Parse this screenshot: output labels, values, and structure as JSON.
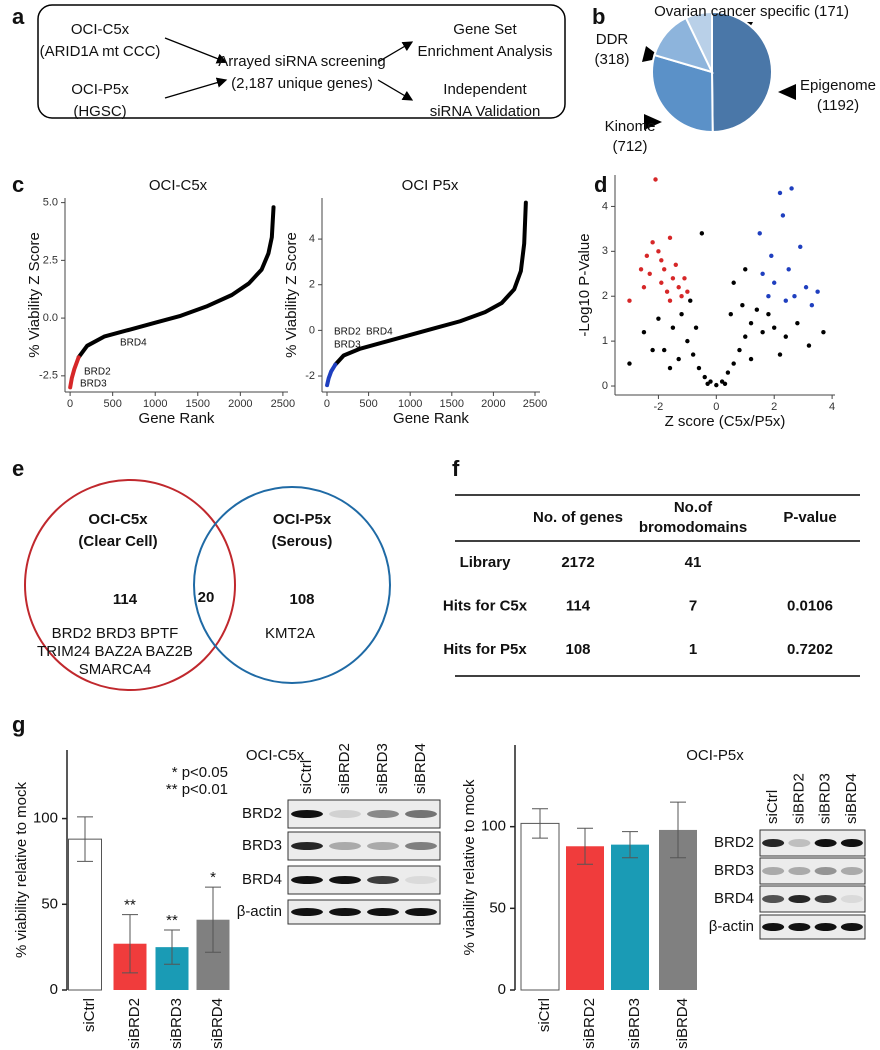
{
  "panels": [
    "a",
    "b",
    "c",
    "d",
    "e",
    "f",
    "g"
  ],
  "diagram": {
    "left": [
      [
        "OCI-C5x",
        "(ARID1A mt CCC)"
      ],
      [
        "OCI-P5x",
        "(HGSC)"
      ]
    ],
    "center": [
      "Arrayed siRNA screening",
      "(2,187 unique genes)"
    ],
    "right": [
      [
        "Gene Set",
        "Enrichment Analysis"
      ],
      [
        "Independent",
        "siRNA Validation"
      ]
    ]
  },
  "venn": {
    "left": {
      "title": [
        "OCI-C5x",
        "(Clear Cell)"
      ],
      "count": 114,
      "genes": [
        "BRD2 BRD3 BPTF",
        "TRIM24 BAZ2A BAZ2B",
        "SMARCA4"
      ]
    },
    "overlap": 20,
    "right": {
      "title": [
        "OCI-P5x",
        "(Serous)"
      ],
      "count": 108,
      "genes": [
        "KMT2A"
      ]
    }
  },
  "table": {
    "header": [
      [
        "No. of genes"
      ],
      [
        "No.of",
        "bromodomains"
      ],
      [
        "P-value"
      ]
    ],
    "rows": [
      [
        "Library",
        2172,
        41
      ],
      [
        "Hits for C5x",
        114,
        7,
        0.0106
      ],
      [
        "Hits for P5x",
        108,
        1,
        0.7202
      ]
    ]
  },
  "blots": [
    {
      "lanes": [
        "siCtrl",
        "siBRD2",
        "siBRD3",
        "siBRD4"
      ],
      "rows": [
        "BRD2",
        "BRD3",
        "BRD4",
        "β-actin"
      ]
    },
    {
      "lanes": [
        "siCtrl",
        "siBRD2",
        "siBRD3",
        "siBRD4"
      ],
      "rows": [
        "BRD2",
        "BRD3",
        "BRD4",
        "β-actin"
      ]
    }
  ],
  "chart_data": [
    {
      "type": "pie",
      "categories": [
        "Epigenome",
        "Kinome",
        "DDR",
        "Ovarian cancer specific"
      ],
      "values": [
        1192,
        712,
        318,
        171
      ],
      "value_labels": [
        "(1192)",
        "(712)",
        "(318)",
        "(171)"
      ],
      "colors": [
        "#4a77a8",
        "#5b91c8",
        "#8db4dc",
        "#b9d0e8"
      ]
    },
    {
      "type": "line",
      "title": "OCI-C5x",
      "x_label": "Gene Rank",
      "y_label": "% Viability Z Score",
      "xlim": [
        -60,
        2560
      ],
      "ylim": [
        -3.2,
        5.2
      ],
      "xticks": [
        0,
        500,
        1000,
        1500,
        2000,
        2500
      ],
      "yticks": [
        {
          "value": -2.5,
          "label": "-2.5"
        },
        {
          "value": 0,
          "label": "0.0"
        },
        {
          "value": 2.5,
          "label": "2.5"
        },
        {
          "value": 5,
          "label": "5.0"
        }
      ],
      "annotations": [
        "BRD4",
        "BRD2",
        "BRD3"
      ],
      "series": [
        {
          "color": "#000000",
          "x": [
            100,
            200,
            400,
            700,
            1000,
            1300,
            1600,
            1900,
            2100,
            2250,
            2330,
            2370,
            2390
          ],
          "values": [
            -1.7,
            -1.2,
            -0.8,
            -0.5,
            -0.2,
            0.1,
            0.5,
            1.0,
            1.5,
            2.1,
            2.8,
            3.5,
            4.8
          ]
        },
        {
          "color": "#d62728",
          "x": [
            1,
            20,
            50,
            100
          ],
          "values": [
            -3.0,
            -2.6,
            -2.2,
            -1.7
          ]
        }
      ]
    },
    {
      "type": "line",
      "title": "OCI P5x",
      "x_label": "Gene Rank",
      "y_label": "% Viability Z Score",
      "xlim": [
        -60,
        2560
      ],
      "ylim": [
        -2.7,
        5.8
      ],
      "xticks": [
        0,
        500,
        1000,
        1500,
        2000,
        2500
      ],
      "yticks": [
        -2,
        0,
        2,
        4
      ],
      "annotations": [
        "BRD2",
        "BRD4",
        "BRD3"
      ],
      "series": [
        {
          "color": "#000000",
          "x": [
            100,
            200,
            400,
            700,
            1000,
            1300,
            1600,
            1900,
            2100,
            2250,
            2330,
            2370,
            2390
          ],
          "values": [
            -1.5,
            -1.1,
            -0.8,
            -0.5,
            -0.2,
            0.1,
            0.4,
            0.8,
            1.2,
            1.8,
            2.6,
            3.8,
            5.6
          ]
        },
        {
          "color": "#1f3fbf",
          "x": [
            1,
            20,
            50,
            100
          ],
          "values": [
            -2.4,
            -2.1,
            -1.8,
            -1.5
          ]
        }
      ]
    },
    {
      "type": "scatter",
      "x_label": "Z score (C5x/P5x)",
      "y_label": "-Log10 P-Value",
      "xlim": [
        -3.5,
        4.1
      ],
      "ylim": [
        -0.2,
        4.7
      ],
      "xticks": [
        -2,
        0,
        2,
        4
      ],
      "yticks": [
        0,
        1,
        2,
        3,
        4
      ],
      "series": [
        {
          "color": "#000000",
          "x": [
            -2.5,
            -2.0,
            -1.8,
            -1.5,
            -1.2,
            -1.0,
            -0.8,
            -0.6,
            -0.4,
            -0.2,
            0,
            0.2,
            0.4,
            0.6,
            0.8,
            1.0,
            1.2,
            1.4,
            1.6,
            1.8,
            2.0,
            2.4,
            2.8,
            3.2,
            3.7,
            -0.9,
            -1.3,
            -2.2,
            -0.5,
            0.6,
            1.0,
            -3.0,
            -0.3,
            0.3,
            -0.7,
            0.9,
            1.2,
            -1.6,
            2.2,
            0.5
          ],
          "values": [
            1.2,
            1.5,
            0.8,
            1.3,
            1.6,
            1.0,
            0.7,
            0.4,
            0.2,
            0.1,
            0.02,
            0.1,
            0.3,
            0.5,
            0.8,
            1.1,
            1.4,
            1.7,
            1.2,
            1.6,
            1.3,
            1.1,
            1.4,
            0.9,
            1.2,
            1.9,
            0.6,
            0.8,
            3.4,
            2.3,
            2.6,
            0.5,
            0.05,
            0.05,
            1.3,
            1.8,
            0.6,
            0.4,
            0.7,
            1.6
          ]
        },
        {
          "color": "#d62728",
          "x": [
            -3.0,
            -2.5,
            -2.3,
            -2.1,
            -2.0,
            -1.9,
            -2.2,
            -1.8,
            -1.6,
            -1.5,
            -1.7,
            -1.4,
            -1.3,
            -1.2,
            -1.1,
            -1.0,
            -2.4,
            -1.6,
            -1.9,
            -2.6
          ],
          "values": [
            1.9,
            2.2,
            2.5,
            4.6,
            3.0,
            2.8,
            3.2,
            2.6,
            3.3,
            2.4,
            2.1,
            2.7,
            2.2,
            2.0,
            2.4,
            2.1,
            2.9,
            1.9,
            2.3,
            2.6
          ]
        },
        {
          "color": "#1f3fbf",
          "x": [
            1.5,
            1.8,
            2.0,
            2.3,
            2.6,
            2.2,
            2.9,
            3.1,
            3.3,
            1.6,
            2.5,
            2.7,
            3.5,
            1.9,
            2.4
          ],
          "values": [
            3.4,
            2.0,
            2.3,
            3.8,
            4.4,
            4.3,
            3.1,
            2.2,
            1.8,
            2.5,
            2.6,
            2.0,
            2.1,
            2.9,
            1.9
          ]
        }
      ]
    },
    {
      "type": "bar",
      "title": "OCI-C5x",
      "y_label": "% viability relative to mock",
      "categories": [
        "siCtrl",
        "siBRD2",
        "siBRD3",
        "siBRD4"
      ],
      "values": [
        88,
        27,
        25,
        41
      ],
      "errors": [
        13,
        17,
        10,
        19
      ],
      "significance": [
        null,
        "**",
        "**",
        "*"
      ],
      "notes": [
        "* p<0.05",
        "** p<0.01"
      ],
      "colors": [
        "#ffffff",
        "#f03c3c",
        "#1a9bb5",
        "#808080"
      ],
      "ylim": [
        0,
        140
      ],
      "yticks": [
        0,
        50,
        100
      ]
    },
    {
      "type": "bar",
      "title": "OCI-P5x",
      "y_label": "% viability relative to mock",
      "categories": [
        "siCtrl",
        "siBRD2",
        "siBRD3",
        "siBRD4"
      ],
      "values": [
        102,
        88,
        89,
        98
      ],
      "errors": [
        9,
        11,
        8,
        17
      ],
      "colors": [
        "#ffffff",
        "#f03c3c",
        "#1a9bb5",
        "#808080"
      ],
      "ylim": [
        0,
        150
      ],
      "yticks": [
        0,
        50,
        100
      ]
    }
  ]
}
